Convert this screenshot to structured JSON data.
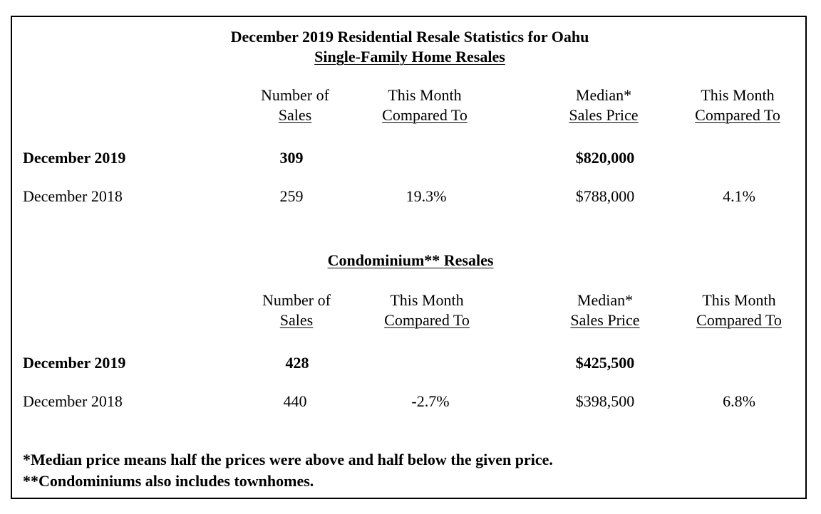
{
  "title": "December 2019 Residential Resale Statistics for Oahu",
  "sections": [
    {
      "heading": "Single-Family Home Resales",
      "columns": [
        {
          "line1": "Number of",
          "line2": "Sales"
        },
        {
          "line1": "This Month",
          "line2": "Compared To"
        },
        {
          "line1": "Median*",
          "line2": "Sales Price"
        },
        {
          "line1": "This Month",
          "line2": "Compared To"
        }
      ],
      "rows": [
        {
          "label": "December 2019",
          "sales": "309",
          "sales_change": "",
          "median": "$820,000",
          "median_change": ""
        },
        {
          "label": "December 2018",
          "sales": "259",
          "sales_change": "19.3%",
          "median": "$788,000",
          "median_change": "4.1%"
        }
      ]
    },
    {
      "heading": "Condominium** Resales",
      "columns": [
        {
          "line1": "Number of",
          "line2": "Sales"
        },
        {
          "line1": "This Month",
          "line2": "Compared To"
        },
        {
          "line1": "Median*",
          "line2": "Sales Price"
        },
        {
          "line1": "This Month",
          "line2": "Compared To"
        }
      ],
      "rows": [
        {
          "label": "December 2019",
          "sales": "428",
          "sales_change": "",
          "median": "$425,500",
          "median_change": ""
        },
        {
          "label": "December 2018",
          "sales": "440",
          "sales_change": "-2.7%",
          "median": "$398,500",
          "median_change": "6.8%"
        }
      ]
    }
  ],
  "footnotes": [
    "*Median price means half the prices were above and half below the given price.",
    "**Condominiums also includes townhomes."
  ]
}
